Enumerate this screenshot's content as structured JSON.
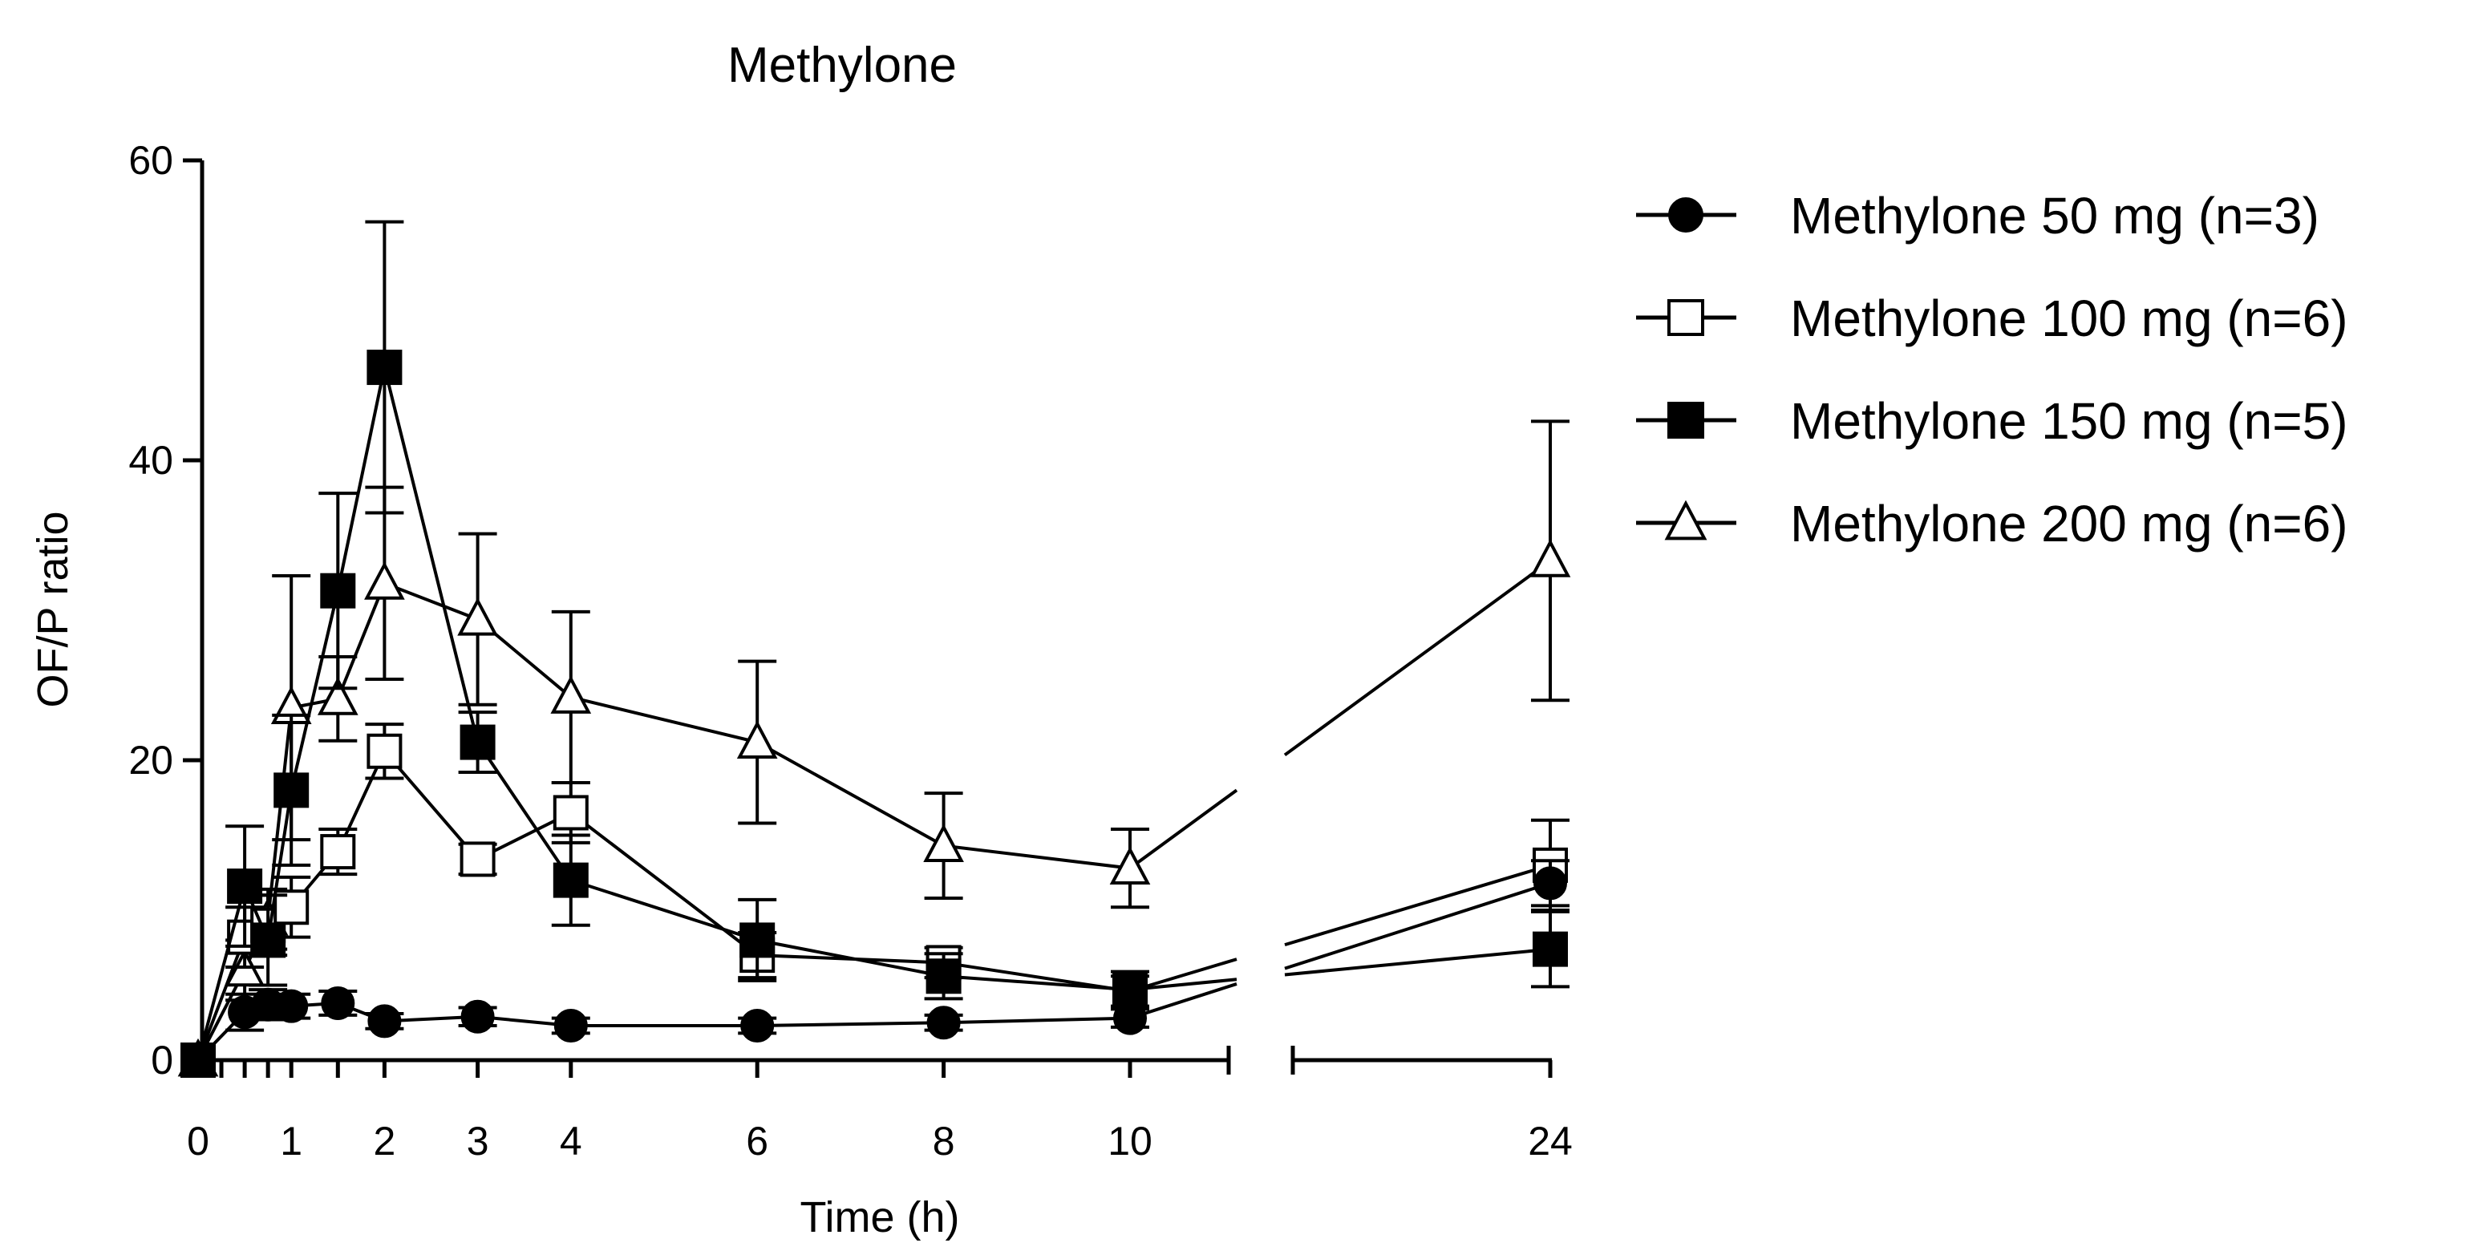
{
  "chart_data": {
    "type": "line",
    "title": "Methylone",
    "xlabel": "Time (h)",
    "ylabel": "OF/P ratio",
    "ylim": [
      0,
      60
    ],
    "yticks": [
      0,
      20,
      40,
      60
    ],
    "xticks": [
      0,
      1,
      2,
      3,
      4,
      6,
      8,
      10,
      24
    ],
    "x_minor_ticks": [
      0.25,
      0.5,
      0.75,
      1.5
    ],
    "x_axis_break": [
      11,
      23
    ],
    "grid": false,
    "legend_position": "top-right outside",
    "x": [
      0,
      0.5,
      0.75,
      1,
      1.5,
      2,
      3,
      4,
      6,
      8,
      10,
      24
    ],
    "series": [
      {
        "name": "Methylone 50 mg (n=3)",
        "marker": "filled-circle",
        "values": [
          0,
          3.2,
          3.7,
          3.6,
          3.8,
          2.6,
          2.9,
          2.3,
          2.3,
          2.5,
          2.8,
          11.8
        ],
        "errors": [
          0,
          1.2,
          1.0,
          0.8,
          0.8,
          0.5,
          0.6,
          0.5,
          0.5,
          0.5,
          0.6,
          1.5
        ]
      },
      {
        "name": "Methylone 100 mg (n=6)",
        "marker": "open-square",
        "values": [
          0,
          8.2,
          9.0,
          10.2,
          13.9,
          20.6,
          13.4,
          16.5,
          7.0,
          6.5,
          4.6,
          13.0
        ],
        "errors": [
          0,
          2.0,
          2.0,
          2.0,
          1.5,
          1.8,
          1.0,
          2.0,
          1.5,
          1.0,
          1.0,
          3.0
        ]
      },
      {
        "name": "Methylone 150 mg (n=5)",
        "marker": "filled-square",
        "values": [
          0,
          11.6,
          8.0,
          18.0,
          31.3,
          46.2,
          21.2,
          12.0,
          8.0,
          5.6,
          4.7,
          7.4
        ],
        "errors": [
          0,
          4.0,
          3.0,
          5.0,
          6.5,
          9.7,
          2.0,
          3.0,
          2.7,
          1.5,
          1.2,
          2.5
        ]
      },
      {
        "name": "Methylone 200 mg (n=6)",
        "marker": "open-triangle",
        "values": [
          0,
          6.0,
          9.4,
          23.5,
          24.1,
          31.8,
          29.4,
          24.2,
          21.2,
          14.3,
          12.8,
          33.3
        ],
        "errors": [
          0,
          2.0,
          2.0,
          8.8,
          2.8,
          6.4,
          5.7,
          5.7,
          5.4,
          3.5,
          2.6,
          9.3
        ]
      }
    ]
  }
}
